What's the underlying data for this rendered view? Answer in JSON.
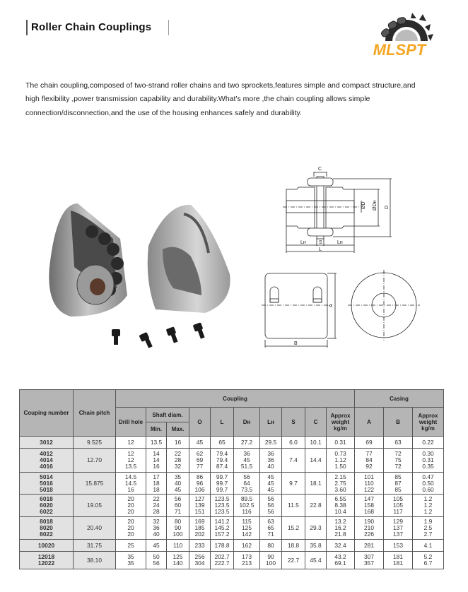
{
  "header": {
    "title": "Roller Chain Couplings",
    "logo_text": "MLSPT",
    "logo_color": "#f5a623"
  },
  "intro": "The chain coupling,composed of two-strand roller chains and two sprockets,features simple and compact structure,and high flexibility ,power transmission capability and durability.What's more ,the chain coupling allows simple connection/disconnection,and the use of the housing enhances safely and durability.",
  "drawing_labels": {
    "c": "C",
    "d": "ØD",
    "dh": "ØDн",
    "D": "D",
    "lh": "Lн",
    "s": "S",
    "l": "L",
    "a": "A",
    "b": "B"
  },
  "table": {
    "headers": {
      "number": "Couping number",
      "pitch": "Chain pitch",
      "coupling": "Coupling",
      "casing": "Casing",
      "drill": "Drill hole",
      "shaft": "Shaft diam.",
      "min": "Min.",
      "max": "Max.",
      "o": "O",
      "l": "L",
      "dh": "Dн",
      "lh": "Lн",
      "s": "S",
      "c": "C",
      "weight": "Approx weight kg/m",
      "a": "A",
      "b": "B",
      "casing_weight": "Approx weight kg/m"
    },
    "groups": [
      {
        "number": [
          "3012"
        ],
        "pitch": "9.525",
        "drill": [
          "12"
        ],
        "min": [
          "13.5"
        ],
        "max": [
          "16"
        ],
        "o": [
          "45"
        ],
        "l": [
          "65"
        ],
        "dh": [
          "27.2"
        ],
        "lh": [
          "29.5"
        ],
        "s": "6.0",
        "c": "10.1",
        "weight": [
          "0.31"
        ],
        "a": [
          "69"
        ],
        "b": [
          "63"
        ],
        "casing_weight": [
          "0.22"
        ]
      },
      {
        "number": [
          "4012",
          "4014",
          "4016"
        ],
        "pitch": "12.70",
        "drill": [
          "12",
          "12",
          "13.5"
        ],
        "min": [
          "14",
          "14",
          "16"
        ],
        "max": [
          "22",
          "28",
          "32"
        ],
        "o": [
          "62",
          "69",
          "77"
        ],
        "l": [
          "79.4",
          "79.4",
          "87.4"
        ],
        "dh": [
          "36",
          "45",
          "51.5"
        ],
        "lh": [
          "36",
          "36",
          "40"
        ],
        "s": "7.4",
        "c": "14.4",
        "weight": [
          "0.73",
          "1.12",
          "1.50"
        ],
        "a": [
          "77",
          "84",
          "92"
        ],
        "b": [
          "72",
          "75",
          "72"
        ],
        "casing_weight": [
          "0.30",
          "0.31",
          "0.35"
        ]
      },
      {
        "number": [
          "5014",
          "5016",
          "5018"
        ],
        "pitch": "15.875",
        "drill": [
          "14.5",
          "14.5",
          "16"
        ],
        "min": [
          "17",
          "18",
          "18"
        ],
        "max": [
          "35",
          "40",
          "45"
        ],
        "o": [
          "86",
          "96",
          "106"
        ],
        "l": [
          "99.7",
          "99.7",
          "99.7"
        ],
        "dh": [
          "56",
          "64",
          "73.5"
        ],
        "lh": [
          "45",
          "45",
          "45"
        ],
        "s": "9.7",
        "c": "18.1",
        "weight": [
          "2.15",
          "2.75",
          "3.60"
        ],
        "a": [
          "101",
          "110",
          "122"
        ],
        "b": [
          "85",
          "87",
          "85"
        ],
        "casing_weight": [
          "0.47",
          "0.50",
          "0.60"
        ]
      },
      {
        "number": [
          "6018",
          "6020",
          "6022"
        ],
        "pitch": "19.05",
        "drill": [
          "20",
          "20",
          "20"
        ],
        "min": [
          "22",
          "24",
          "28"
        ],
        "max": [
          "56",
          "60",
          "71"
        ],
        "o": [
          "127",
          "139",
          "151"
        ],
        "l": [
          "123.5",
          "123.5",
          "123.5"
        ],
        "dh": [
          "89.5",
          "102.5",
          "116"
        ],
        "lh": [
          "56",
          "56",
          "56"
        ],
        "s": "11.5",
        "c": "22.8",
        "weight": [
          "6.55",
          "8.38",
          "10.4"
        ],
        "a": [
          "147",
          "158",
          "168"
        ],
        "b": [
          "105",
          "105",
          "117"
        ],
        "casing_weight": [
          "1.2",
          "1.2",
          "1.2"
        ]
      },
      {
        "number": [
          "8018",
          "8020",
          "8022"
        ],
        "pitch": "20.40",
        "drill": [
          "20",
          "20",
          "20"
        ],
        "min": [
          "32",
          "36",
          "40"
        ],
        "max": [
          "80",
          "90",
          "100"
        ],
        "o": [
          "169",
          "185",
          "202"
        ],
        "l": [
          "141.2",
          "145.2",
          "157.2"
        ],
        "dh": [
          "115",
          "125",
          "142"
        ],
        "lh": [
          "63",
          "65",
          "71"
        ],
        "s": "15.2",
        "c": "29.3",
        "weight": [
          "13.2",
          "16.2",
          "21.8"
        ],
        "a": [
          "190",
          "210",
          "226"
        ],
        "b": [
          "129",
          "137",
          "137"
        ],
        "casing_weight": [
          "1.9",
          "2.5",
          "2.7"
        ]
      },
      {
        "number": [
          "10020"
        ],
        "pitch": "31.75",
        "drill": [
          "25"
        ],
        "min": [
          "45"
        ],
        "max": [
          "110"
        ],
        "o": [
          "233"
        ],
        "l": [
          "178.8"
        ],
        "dh": [
          "162"
        ],
        "lh": [
          "80"
        ],
        "s": "18.8",
        "c": "35.8",
        "weight": [
          "32.4"
        ],
        "a": [
          "281"
        ],
        "b": [
          "153"
        ],
        "casing_weight": [
          "4.1"
        ]
      },
      {
        "number": [
          "12018",
          "12022"
        ],
        "pitch": "38.10",
        "drill": [
          "35",
          "35"
        ],
        "min": [
          "50",
          "56"
        ],
        "max": [
          "125",
          "140"
        ],
        "o": [
          "256",
          "304"
        ],
        "l": [
          "202.7",
          "222.7"
        ],
        "dh": [
          "173",
          "213"
        ],
        "lh": [
          "90",
          "100"
        ],
        "s": "22.7",
        "c": "45.4",
        "weight": [
          "43.2",
          "69.1"
        ],
        "a": [
          "307",
          "357"
        ],
        "b": [
          "181",
          "181"
        ],
        "casing_weight": [
          "5.2",
          "6.7"
        ]
      }
    ]
  }
}
